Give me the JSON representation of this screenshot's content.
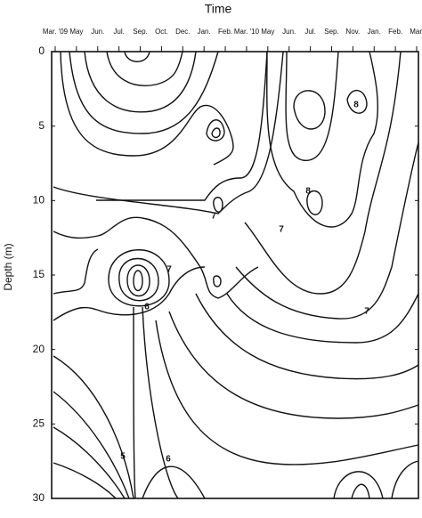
{
  "chart_data": {
    "type": "contour",
    "title": "Time",
    "y_label": "Depth (m)",
    "categories": [
      "Mar. '09",
      "May",
      "Jun.",
      "Jul.",
      "Sep.",
      "Oct.",
      "Dec.",
      "Jan.",
      "Feb.",
      "Mar. '10",
      "May",
      "Jun.",
      "Jul.",
      "Sep.",
      "Nov.",
      "Jan.",
      "Feb.",
      "Mar."
    ],
    "ylim": [
      0,
      30
    ],
    "yticks": [
      0,
      5,
      10,
      15,
      20,
      25,
      30
    ],
    "y_inverted": true,
    "contour_labels": [
      "7",
      "8",
      "8",
      "7",
      "7",
      "6",
      "7",
      "5",
      "6"
    ]
  }
}
